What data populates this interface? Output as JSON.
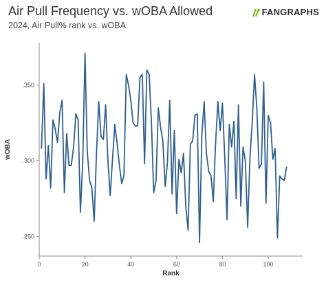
{
  "header": {
    "title": "Air Pull Frequency vs. wOBA Allowed",
    "subtitle": "2024, Air Pull% rank vs. wOBA",
    "brand": "FANGRAPHS",
    "brand_icon": "fangraphs-logo-icon",
    "brand_color": "#77b300"
  },
  "chart_data": {
    "type": "line",
    "xlabel": "Rank",
    "ylabel": "wOBA",
    "xlim": [
      0,
      115
    ],
    "ylim": [
      0.237,
      0.378
    ],
    "xticks": [
      0,
      20,
      40,
      60,
      80,
      100
    ],
    "yticks": [
      0.25,
      0.3,
      0.35
    ],
    "xtick_labels": [
      "0",
      "20",
      "40",
      "60",
      "80",
      "100"
    ],
    "ytick_labels": [
      ".250",
      ".300",
      ".350"
    ],
    "grid": false,
    "line_color": "#2e5f8f",
    "x": [
      1,
      2,
      3,
      4,
      5,
      6,
      7,
      8,
      9,
      10,
      11,
      12,
      13,
      14,
      15,
      16,
      17,
      18,
      19,
      20,
      21,
      22,
      23,
      24,
      25,
      26,
      27,
      28,
      29,
      30,
      31,
      32,
      33,
      34,
      35,
      36,
      37,
      38,
      39,
      40,
      41,
      42,
      43,
      44,
      45,
      46,
      47,
      48,
      49,
      50,
      51,
      52,
      53,
      54,
      55,
      56,
      57,
      58,
      59,
      60,
      61,
      62,
      63,
      64,
      65,
      66,
      67,
      68,
      69,
      70,
      71,
      72,
      73,
      74,
      75,
      76,
      77,
      78,
      79,
      80,
      81,
      82,
      83,
      84,
      85,
      86,
      87,
      88,
      89,
      90,
      91,
      92,
      93,
      94,
      95,
      96,
      97,
      98,
      99,
      100,
      101,
      102,
      103,
      104,
      105,
      106,
      107,
      108
    ],
    "values": [
      0.308,
      0.351,
      0.288,
      0.31,
      0.282,
      0.327,
      0.321,
      0.312,
      0.332,
      0.34,
      0.279,
      0.318,
      0.297,
      0.297,
      0.309,
      0.331,
      0.327,
      0.266,
      0.299,
      0.371,
      0.306,
      0.287,
      0.282,
      0.26,
      0.305,
      0.339,
      0.316,
      0.314,
      0.337,
      0.3,
      0.277,
      0.301,
      0.324,
      0.312,
      0.297,
      0.285,
      0.29,
      0.357,
      0.35,
      0.34,
      0.325,
      0.323,
      0.323,
      0.355,
      0.357,
      0.298,
      0.36,
      0.357,
      0.325,
      0.279,
      0.287,
      0.335,
      0.322,
      0.313,
      0.283,
      0.299,
      0.34,
      0.278,
      0.32,
      0.265,
      0.301,
      0.292,
      0.305,
      0.27,
      0.254,
      0.311,
      0.313,
      0.33,
      0.331,
      0.246,
      0.317,
      0.339,
      0.305,
      0.293,
      0.29,
      0.273,
      0.311,
      0.339,
      0.32,
      0.338,
      0.302,
      0.261,
      0.324,
      0.309,
      0.326,
      0.275,
      0.337,
      0.27,
      0.309,
      0.3,
      0.256,
      0.302,
      0.325,
      0.357,
      0.335,
      0.295,
      0.298,
      0.352,
      0.272,
      0.33,
      0.325,
      0.301,
      0.308,
      0.249,
      0.29,
      0.288,
      0.287,
      0.296
    ]
  }
}
